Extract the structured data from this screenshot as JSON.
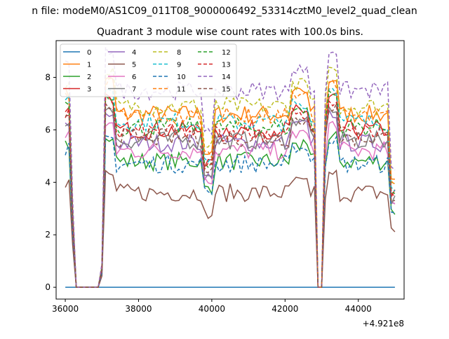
{
  "suptitle": "n file: modeM0/AS1C09_011T08_9000006492_53314cztM0_level2_quad_clean",
  "chart_data": {
    "type": "line",
    "title": "Quadrant 3 module wise count rates with 100.0s bins.",
    "xlabel": "",
    "ylabel": "",
    "x_offset_label": "+4.921e8",
    "xlim": [
      35750,
      45250
    ],
    "ylim": [
      -0.45,
      9.4
    ],
    "x_ticks": [
      36000,
      38000,
      40000,
      42000,
      44000
    ],
    "y_ticks": [
      0,
      2,
      4,
      6,
      8
    ],
    "grid": false,
    "legend_position": "top-left",
    "legend_columns": 4,
    "colors": [
      "#1f77b4",
      "#ff7f0e",
      "#2ca02c",
      "#d62728",
      "#9467bd",
      "#8c564b",
      "#e377c2",
      "#7f7f7f",
      "#bcbd22",
      "#17becf",
      "#1f77b4",
      "#ff7f0e",
      "#2ca02c",
      "#d62728",
      "#9467bd",
      "#8c564b"
    ],
    "series": [
      {
        "name": "0",
        "base": 0,
        "style": "solid"
      },
      {
        "name": "1",
        "base": 6.6,
        "style": "solid"
      },
      {
        "name": "2",
        "base": 4.8,
        "style": "solid"
      },
      {
        "name": "3",
        "base": 6.0,
        "style": "solid"
      },
      {
        "name": "4",
        "base": 5.5,
        "style": "solid"
      },
      {
        "name": "5",
        "base": 3.6,
        "style": "solid"
      },
      {
        "name": "6",
        "base": 5.2,
        "style": "solid"
      },
      {
        "name": "7",
        "base": 5.6,
        "style": "solid"
      },
      {
        "name": "8",
        "base": 6.9,
        "style": "dashed"
      },
      {
        "name": "9",
        "base": 6.3,
        "style": "dashed"
      },
      {
        "name": "10",
        "base": 4.7,
        "style": "dashed"
      },
      {
        "name": "11",
        "base": 6.5,
        "style": "dashed"
      },
      {
        "name": "12",
        "base": 6.1,
        "style": "dashed"
      },
      {
        "name": "13",
        "base": 5.9,
        "style": "dashed"
      },
      {
        "name": "14",
        "base": 7.5,
        "style": "dashed"
      },
      {
        "name": "15",
        "base": 5.7,
        "style": "dashed"
      }
    ]
  }
}
